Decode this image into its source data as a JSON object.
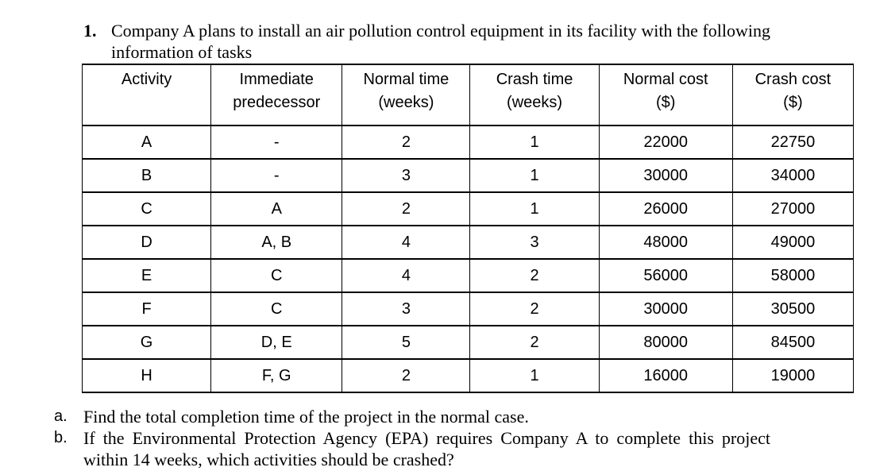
{
  "problem": {
    "number": "1.",
    "text": "Company A plans to install an air pollution control equipment in its facility with the following information of tasks"
  },
  "table": {
    "headers": [
      {
        "line1": "Activity",
        "line2": ""
      },
      {
        "line1": "Immediate",
        "line2": "predecessor"
      },
      {
        "line1": "Normal time",
        "line2": "(weeks)"
      },
      {
        "line1": "Crash time",
        "line2": "(weeks)"
      },
      {
        "line1": "Normal cost",
        "line2": "($)"
      },
      {
        "line1": "Crash cost",
        "line2": "($)"
      }
    ],
    "rows": [
      [
        "A",
        "-",
        "2",
        "1",
        "22000",
        "22750"
      ],
      [
        "B",
        "-",
        "3",
        "1",
        "30000",
        "34000"
      ],
      [
        "C",
        "A",
        "2",
        "1",
        "26000",
        "27000"
      ],
      [
        "D",
        "A, B",
        "4",
        "3",
        "48000",
        "49000"
      ],
      [
        "E",
        "C",
        "4",
        "2",
        "56000",
        "58000"
      ],
      [
        "F",
        "C",
        "3",
        "2",
        "30000",
        "30500"
      ],
      [
        "G",
        "D, E",
        "5",
        "2",
        "80000",
        "84500"
      ],
      [
        "H",
        "F, G",
        "2",
        "1",
        "16000",
        "19000"
      ]
    ]
  },
  "questions": [
    {
      "marker": "a.",
      "text": "Find the total completion time of the project in the normal case."
    },
    {
      "marker": "b.",
      "text": "If the Environmental Protection Agency (EPA) requires Company A to complete this project within 14 weeks, which activities should be crashed?"
    }
  ],
  "colors": {
    "text": "#000000",
    "background": "#ffffff",
    "border": "#000000"
  }
}
